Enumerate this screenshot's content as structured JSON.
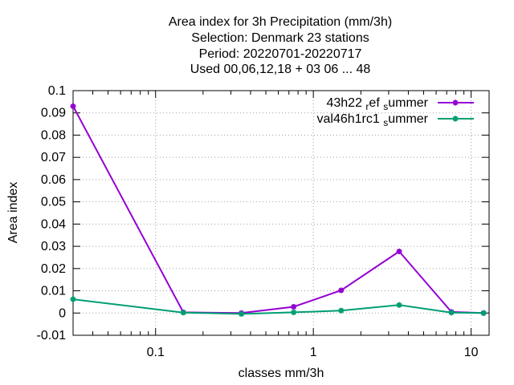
{
  "chart_data": {
    "type": "line",
    "title_lines": [
      "Area index  for 3h Precipitation (mm/3h)",
      "Selection: Denmark     23 stations",
      "Period: 20220701-20220717",
      "Used  00,06,12,18  + 03 06 ... 48"
    ],
    "xlabel": "classes mm/3h",
    "ylabel": "Area index",
    "x_scale": "log",
    "xlim": [
      0.03,
      13
    ],
    "ylim": [
      -0.01,
      0.1
    ],
    "x_ticks": [
      0.1,
      1,
      10
    ],
    "x_tick_labels": [
      "0.1",
      "1",
      "10"
    ],
    "y_ticks": [
      -0.01,
      0,
      0.01,
      0.02,
      0.03,
      0.04,
      0.05,
      0.06,
      0.07,
      0.08,
      0.09,
      0.1
    ],
    "y_tick_labels": [
      "-0.01",
      "0",
      "0.01",
      "0.02",
      "0.03",
      "0.04",
      "0.05",
      "0.06",
      "0.07",
      "0.08",
      "0.09",
      "0.1"
    ],
    "grid": true,
    "legend_position": "top-right",
    "x": [
      0.03,
      0.15,
      0.35,
      0.75,
      1.5,
      3.5,
      7.5,
      12
    ],
    "series": [
      {
        "name": "43h22 ref summer",
        "legend_parts": [
          "43h22",
          "r",
          "ef",
          "s",
          "ummer"
        ],
        "color": "#9400d3",
        "values": [
          0.093,
          0.0003,
          0.0,
          0.0028,
          0.0102,
          0.0277,
          0.0005,
          0.0
        ]
      },
      {
        "name": "val46h1rc1 summer",
        "legend_parts": [
          "val46h1rc1",
          "",
          "",
          "s",
          "ummer"
        ],
        "color": "#009e73",
        "values": [
          0.0062,
          0.0002,
          -0.0004,
          0.0003,
          0.0011,
          0.0036,
          0.0002,
          0.0
        ]
      }
    ]
  }
}
